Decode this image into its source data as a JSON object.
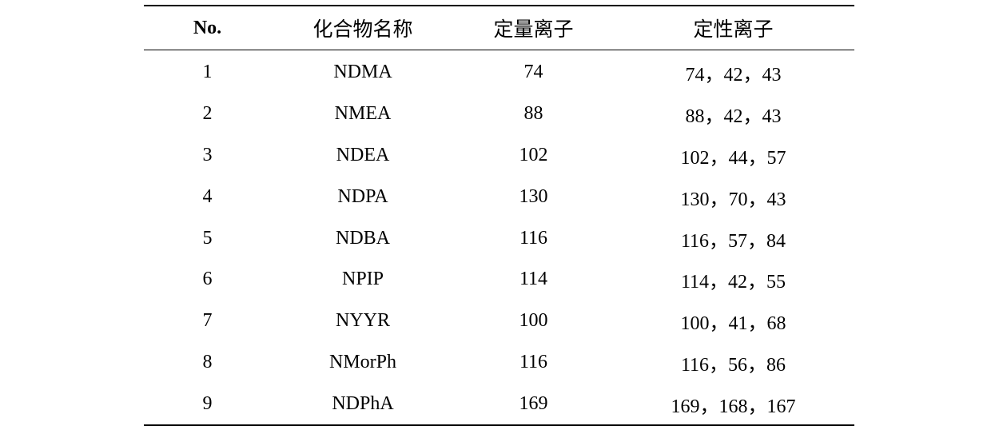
{
  "table": {
    "headers": [
      "No.",
      "化合物名称",
      "定量离子",
      "定性离子"
    ],
    "rows": [
      {
        "no": "1",
        "name": "NDMA",
        "quant": "74",
        "qual": "74，42，43"
      },
      {
        "no": "2",
        "name": "NMEA",
        "quant": "88",
        "qual": "88，42，43"
      },
      {
        "no": "3",
        "name": "NDEA",
        "quant": "102",
        "qual": "102，44，57"
      },
      {
        "no": "4",
        "name": "NDPA",
        "quant": "130",
        "qual": "130，70，43"
      },
      {
        "no": "5",
        "name": "NDBA",
        "quant": "116",
        "qual": "116，57，84"
      },
      {
        "no": "6",
        "name": "NPIP",
        "quant": "114",
        "qual": "114，42，55"
      },
      {
        "no": "7",
        "name": "NYYR",
        "quant": "100",
        "qual": "100，41，68"
      },
      {
        "no": "8",
        "name": "NMorPh",
        "quant": "116",
        "qual": "116，56，86"
      },
      {
        "no": "9",
        "name": "NDPhA",
        "quant": "169",
        "qual": "169，168，167"
      }
    ]
  }
}
